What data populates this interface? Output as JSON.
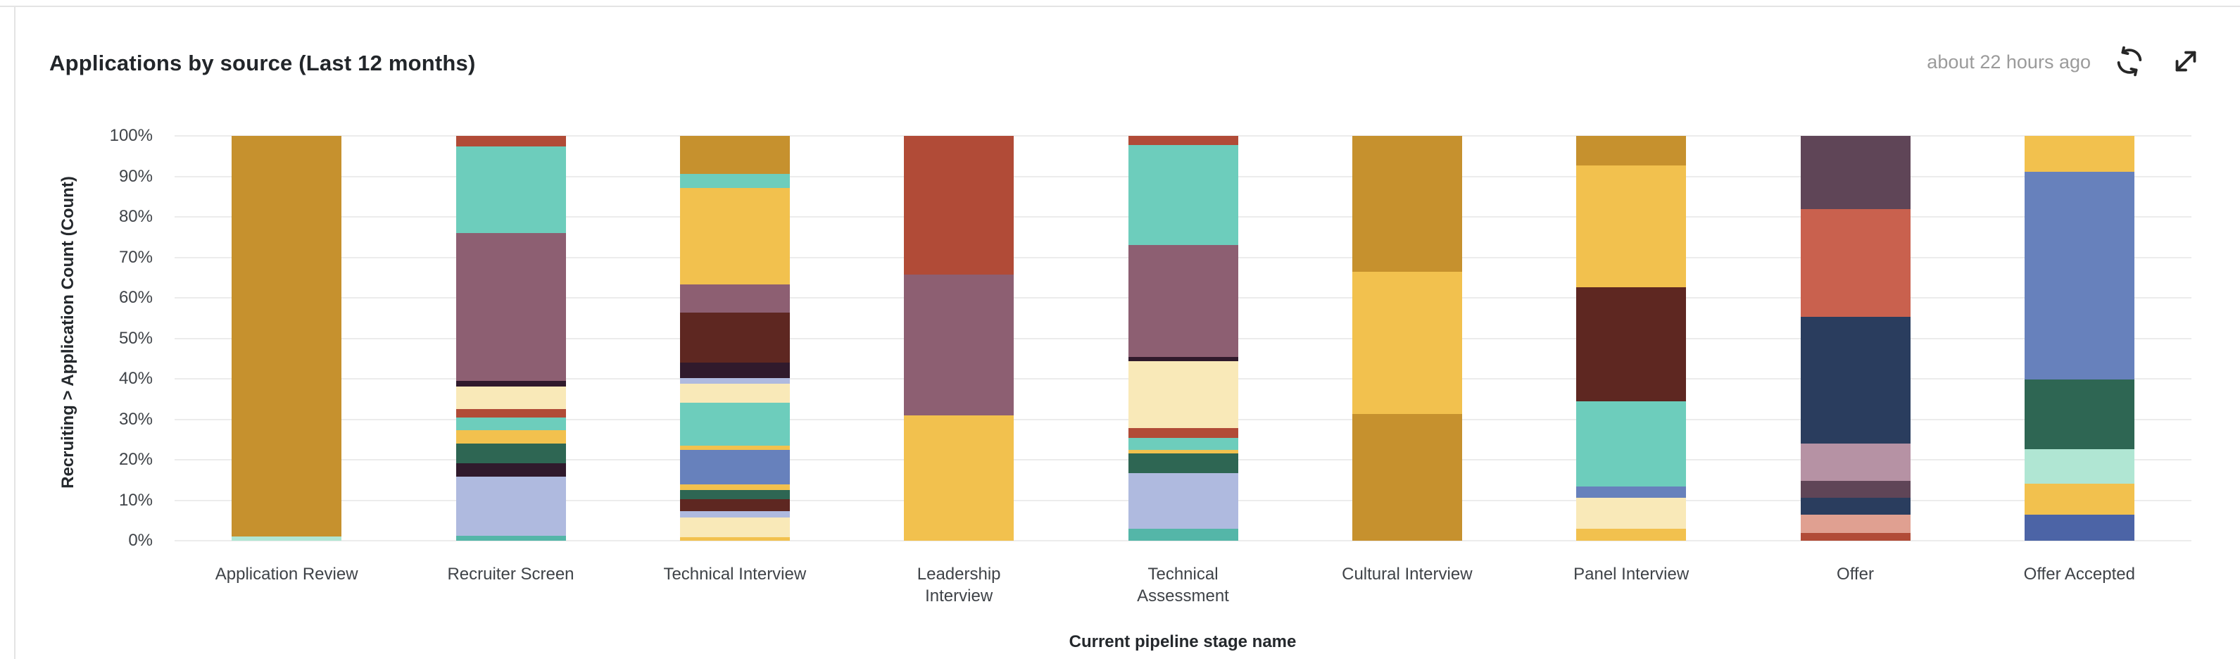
{
  "card": {
    "title": "Applications by source (Last 12 months)",
    "last_updated": "about 22 hours ago",
    "actions": {
      "refresh_icon": "circular-refresh-arrows",
      "expand_icon": "diagonal-expand-arrow"
    }
  },
  "chart_data": {
    "type": "bar",
    "variant": "vertical-100pct-stacked",
    "title": "Applications by source (Last 12 months)",
    "xlabel": "Current pipeline stage name",
    "ylabel": "Recruiting > Application Count (Count)",
    "ylim": [
      0,
      100
    ],
    "grid": true,
    "legend_position": "none",
    "y_ticks": [
      "100%",
      "90%",
      "80%",
      "70%",
      "60%",
      "50%",
      "40%",
      "30%",
      "20%",
      "10%",
      "0%"
    ],
    "palette": {
      "goldenrod": "#C6912E",
      "amber": "#F2C14E",
      "cream": "#F9E9B8",
      "teal": "#6DCDBC",
      "teal_dark": "#54B6A8",
      "mint": "#B0E6D3",
      "green": "#2E6653",
      "mauve": "#8D5F72",
      "plum_black": "#301A2C",
      "maroon": "#5E2721",
      "red": "#B14B37",
      "coral": "#C9614E",
      "salmon": "#E0A091",
      "rose": "#B692A4",
      "plum": "#5F4557",
      "periwinkle": "#AFBADF",
      "blue": "#6781BC",
      "blue_dark": "#4C64A6",
      "navy": "#2A3D5E"
    },
    "categories": [
      "Application Review",
      "Recruiter Screen",
      "Technical Interview",
      "Leadership Interview",
      "Technical Assessment",
      "Cultural Interview",
      "Panel Interview",
      "Offer",
      "Offer Accepted"
    ],
    "bars": [
      {
        "category": "Application Review",
        "label": "Application Review",
        "segments_bottom_to_top": [
          {
            "color": "mint",
            "value": 1.0
          },
          {
            "color": "goldenrod",
            "value": 99.0
          }
        ]
      },
      {
        "category": "Recruiter Screen",
        "label": "Recruiter Screen",
        "segments_bottom_to_top": [
          {
            "color": "teal_dark",
            "value": 1.2
          },
          {
            "color": "periwinkle",
            "value": 14.6
          },
          {
            "color": "plum_black",
            "value": 3.3
          },
          {
            "color": "green",
            "value": 4.9
          },
          {
            "color": "amber",
            "value": 3.3
          },
          {
            "color": "teal",
            "value": 3.1
          },
          {
            "color": "red",
            "value": 2.1
          },
          {
            "color": "cream",
            "value": 5.6
          },
          {
            "color": "plum_black",
            "value": 1.4
          },
          {
            "color": "mauve",
            "value": 36.5
          },
          {
            "color": "teal",
            "value": 21.4
          },
          {
            "color": "red",
            "value": 2.6
          }
        ]
      },
      {
        "category": "Technical Interview",
        "label": "Technical Interview",
        "segments_bottom_to_top": [
          {
            "color": "amber",
            "value": 0.9
          },
          {
            "color": "cream",
            "value": 4.8
          },
          {
            "color": "periwinkle",
            "value": 1.6
          },
          {
            "color": "maroon",
            "value": 3.0
          },
          {
            "color": "green",
            "value": 2.2
          },
          {
            "color": "amber",
            "value": 1.4
          },
          {
            "color": "blue",
            "value": 8.5
          },
          {
            "color": "amber",
            "value": 1.1
          },
          {
            "color": "teal",
            "value": 10.6
          },
          {
            "color": "cream",
            "value": 4.7
          },
          {
            "color": "periwinkle",
            "value": 1.4
          },
          {
            "color": "plum_black",
            "value": 3.8
          },
          {
            "color": "maroon",
            "value": 12.3
          },
          {
            "color": "mauve",
            "value": 7.0
          },
          {
            "color": "amber",
            "value": 23.8
          },
          {
            "color": "teal",
            "value": 3.5
          },
          {
            "color": "goldenrod",
            "value": 9.4
          }
        ]
      },
      {
        "category": "Leadership Interview",
        "label": "Leadership\nInterview",
        "segments_bottom_to_top": [
          {
            "color": "amber",
            "value": 31.0
          },
          {
            "color": "mauve",
            "value": 34.7
          },
          {
            "color": "red",
            "value": 34.3
          }
        ]
      },
      {
        "category": "Technical Assessment",
        "label": "Technical\nAssessment",
        "segments_bottom_to_top": [
          {
            "color": "teal_dark",
            "value": 3.0
          },
          {
            "color": "periwinkle",
            "value": 13.7
          },
          {
            "color": "green",
            "value": 4.9
          },
          {
            "color": "amber",
            "value": 0.8
          },
          {
            "color": "teal",
            "value": 3.0
          },
          {
            "color": "red",
            "value": 2.4
          },
          {
            "color": "cream",
            "value": 16.5
          },
          {
            "color": "plum_black",
            "value": 1.1
          },
          {
            "color": "mauve",
            "value": 27.6
          },
          {
            "color": "teal",
            "value": 24.7
          },
          {
            "color": "red",
            "value": 2.3
          }
        ]
      },
      {
        "category": "Cultural Interview",
        "label": "Cultural Interview",
        "segments_bottom_to_top": [
          {
            "color": "goldenrod",
            "value": 31.3
          },
          {
            "color": "amber",
            "value": 35.1
          },
          {
            "color": "goldenrod",
            "value": 33.6
          }
        ]
      },
      {
        "category": "Panel Interview",
        "label": "Panel Interview",
        "segments_bottom_to_top": [
          {
            "color": "amber",
            "value": 3.0
          },
          {
            "color": "cream",
            "value": 7.6
          },
          {
            "color": "blue",
            "value": 2.8
          },
          {
            "color": "teal",
            "value": 21.0
          },
          {
            "color": "maroon",
            "value": 28.2
          },
          {
            "color": "amber",
            "value": 30.1
          },
          {
            "color": "goldenrod",
            "value": 7.3
          }
        ]
      },
      {
        "category": "Offer",
        "label": "Offer",
        "segments_bottom_to_top": [
          {
            "color": "red",
            "value": 1.9
          },
          {
            "color": "salmon",
            "value": 4.5
          },
          {
            "color": "navy",
            "value": 4.2
          },
          {
            "color": "plum",
            "value": 4.2
          },
          {
            "color": "rose",
            "value": 9.2
          },
          {
            "color": "navy",
            "value": 31.3
          },
          {
            "color": "coral",
            "value": 26.6
          },
          {
            "color": "plum",
            "value": 18.1
          }
        ]
      },
      {
        "category": "Offer Accepted",
        "label": "Offer Accepted",
        "segments_bottom_to_top": [
          {
            "color": "blue_dark",
            "value": 6.4
          },
          {
            "color": "amber",
            "value": 7.7
          },
          {
            "color": "mint",
            "value": 8.5
          },
          {
            "color": "green",
            "value": 17.2
          },
          {
            "color": "blue",
            "value": 51.3
          },
          {
            "color": "amber",
            "value": 8.9
          }
        ]
      }
    ]
  }
}
